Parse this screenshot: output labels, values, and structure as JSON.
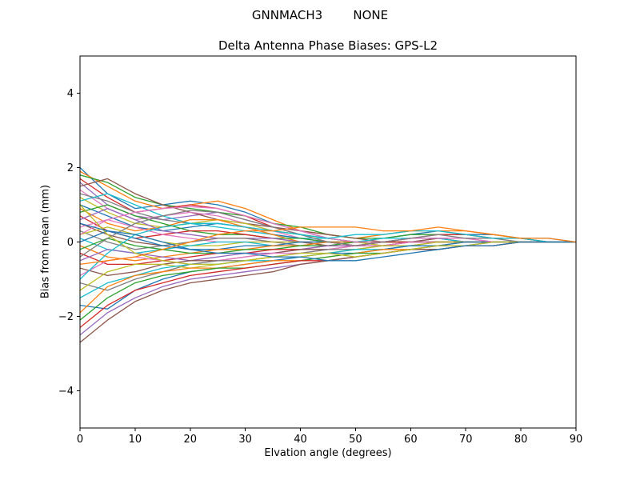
{
  "chart_data": {
    "type": "line",
    "suptitle": "GNNMACH3        NONE",
    "title": "Delta Antenna Phase Biases: GPS-L2",
    "xlabel": "Elvation angle (degrees)",
    "ylabel": "Bias from mean (mm)",
    "xlim": [
      0,
      90
    ],
    "ylim": [
      -5,
      5
    ],
    "xticks": [
      0,
      10,
      20,
      30,
      40,
      50,
      60,
      70,
      80,
      90
    ],
    "yticks": [
      -4,
      -2,
      0,
      2,
      4
    ],
    "grid": false,
    "legend": "none",
    "line_width": 1.3,
    "axis_color": "#000000",
    "color_cycle": [
      "#1f77b4",
      "#ff7f0e",
      "#2ca02c",
      "#d62728",
      "#9467bd",
      "#8c564b",
      "#e377c2",
      "#7f7f7f",
      "#bcbd22",
      "#17becf"
    ],
    "x": [
      0,
      5,
      10,
      15,
      20,
      25,
      30,
      35,
      40,
      45,
      50,
      55,
      60,
      65,
      70,
      75,
      80,
      85,
      90
    ],
    "series": [
      {
        "values": [
          2.0,
          1.3,
          0.9,
          1.0,
          1.1,
          1.0,
          0.8,
          0.5,
          0.3,
          0.1,
          0.0,
          0.1,
          0.2,
          0.3,
          0.2,
          0.2,
          0.1,
          0.1,
          0.0
        ]
      },
      {
        "values": [
          1.9,
          1.5,
          1.1,
          0.9,
          1.0,
          1.1,
          0.9,
          0.6,
          0.3,
          0.2,
          0.1,
          0.2,
          0.3,
          0.3,
          0.3,
          0.2,
          0.1,
          0.0,
          0.0
        ]
      },
      {
        "values": [
          1.8,
          1.6,
          1.2,
          1.0,
          0.9,
          0.8,
          0.7,
          0.5,
          0.4,
          0.2,
          0.1,
          0.1,
          0.2,
          0.2,
          0.2,
          0.1,
          0.1,
          0.0,
          0.0
        ]
      },
      {
        "values": [
          1.7,
          1.2,
          0.8,
          0.9,
          1.0,
          0.9,
          0.7,
          0.4,
          0.2,
          0.0,
          -0.1,
          0.0,
          0.1,
          0.2,
          0.2,
          0.1,
          0.1,
          0.0,
          0.0
        ]
      },
      {
        "values": [
          1.6,
          1.0,
          0.7,
          0.6,
          0.7,
          0.8,
          0.6,
          0.4,
          0.3,
          0.1,
          0.0,
          0.0,
          0.1,
          0.1,
          0.1,
          0.1,
          0.0,
          0.0,
          0.0
        ]
      },
      {
        "values": [
          1.5,
          1.7,
          1.3,
          1.0,
          0.8,
          0.6,
          0.5,
          0.4,
          0.3,
          0.2,
          0.1,
          0.0,
          0.1,
          0.1,
          0.1,
          0.0,
          0.0,
          0.0,
          0.0
        ]
      },
      {
        "values": [
          1.4,
          0.9,
          0.6,
          0.7,
          0.8,
          0.7,
          0.5,
          0.3,
          0.1,
          0.0,
          -0.1,
          -0.1,
          0.0,
          0.1,
          0.1,
          0.0,
          0.0,
          0.0,
          0.0
        ]
      },
      {
        "values": [
          1.3,
          1.1,
          0.8,
          0.6,
          0.5,
          0.5,
          0.4,
          0.3,
          0.2,
          0.1,
          0.0,
          0.0,
          0.0,
          0.1,
          0.0,
          0.0,
          0.0,
          0.0,
          0.0
        ]
      },
      {
        "values": [
          1.2,
          0.8,
          0.5,
          0.4,
          0.5,
          0.6,
          0.5,
          0.3,
          0.2,
          0.1,
          0.0,
          -0.1,
          0.0,
          0.0,
          0.0,
          0.0,
          0.0,
          0.0,
          0.0
        ]
      },
      {
        "values": [
          1.1,
          1.3,
          1.0,
          0.7,
          0.5,
          0.4,
          0.3,
          0.2,
          0.1,
          0.1,
          0.0,
          0.0,
          0.0,
          0.0,
          0.0,
          0.0,
          0.0,
          0.0,
          0.0
        ]
      },
      {
        "values": [
          1.0,
          0.7,
          0.4,
          0.3,
          0.4,
          0.5,
          0.4,
          0.2,
          0.1,
          0.0,
          0.0,
          0.0,
          0.1,
          0.1,
          0.0,
          0.0,
          0.0,
          0.0,
          0.0
        ]
      },
      {
        "values": [
          0.9,
          0.5,
          0.3,
          0.4,
          0.6,
          0.6,
          0.4,
          0.2,
          0.0,
          -0.1,
          -0.1,
          0.0,
          0.0,
          0.0,
          0.0,
          0.0,
          0.0,
          0.0,
          0.0
        ]
      },
      {
        "values": [
          0.8,
          1.0,
          0.7,
          0.5,
          0.3,
          0.2,
          0.2,
          0.1,
          0.1,
          0.0,
          0.0,
          0.0,
          0.0,
          0.0,
          0.0,
          0.0,
          0.0,
          0.0,
          0.0
        ]
      },
      {
        "values": [
          0.7,
          0.3,
          0.1,
          0.2,
          0.3,
          0.3,
          0.2,
          0.1,
          0.0,
          0.0,
          -0.1,
          -0.1,
          0.0,
          0.0,
          0.0,
          0.0,
          0.0,
          0.0,
          0.0
        ]
      },
      {
        "values": [
          0.6,
          0.9,
          0.6,
          0.3,
          0.2,
          0.1,
          0.1,
          0.1,
          0.0,
          0.0,
          0.0,
          0.0,
          0.0,
          0.0,
          0.0,
          0.0,
          0.0,
          0.0,
          0.0
        ]
      },
      {
        "values": [
          0.5,
          0.2,
          0.0,
          -0.1,
          0.0,
          0.1,
          0.1,
          0.0,
          0.0,
          -0.1,
          -0.1,
          0.0,
          0.0,
          0.1,
          0.0,
          0.0,
          0.0,
          0.0,
          0.0
        ]
      },
      {
        "values": [
          0.4,
          0.6,
          0.4,
          0.2,
          0.1,
          0.0,
          0.0,
          0.0,
          0.0,
          0.0,
          0.0,
          0.0,
          0.1,
          0.1,
          0.1,
          0.0,
          0.0,
          0.0,
          0.0
        ]
      },
      {
        "values": [
          0.3,
          0.0,
          -0.2,
          -0.1,
          0.0,
          0.1,
          0.1,
          0.0,
          -0.1,
          -0.1,
          0.0,
          0.0,
          0.0,
          0.0,
          0.0,
          0.0,
          0.0,
          0.0,
          0.0
        ]
      },
      {
        "values": [
          0.2,
          0.4,
          0.2,
          0.0,
          -0.1,
          -0.1,
          0.0,
          0.0,
          0.0,
          0.0,
          0.0,
          0.0,
          0.0,
          0.0,
          0.0,
          0.0,
          0.0,
          0.0,
          0.0
        ]
      },
      {
        "values": [
          0.1,
          -0.2,
          -0.3,
          -0.2,
          -0.1,
          0.0,
          0.0,
          -0.1,
          -0.1,
          0.0,
          0.0,
          0.1,
          0.1,
          0.1,
          0.0,
          0.0,
          0.0,
          0.0,
          0.0
        ]
      },
      {
        "values": [
          0.0,
          0.3,
          0.1,
          -0.1,
          -0.2,
          -0.2,
          -0.1,
          -0.1,
          0.0,
          0.0,
          0.0,
          0.0,
          0.0,
          0.0,
          0.0,
          0.0,
          0.0,
          0.0,
          0.0
        ]
      },
      {
        "values": [
          -0.1,
          -0.4,
          -0.5,
          -0.4,
          -0.3,
          -0.2,
          -0.2,
          -0.1,
          -0.1,
          0.0,
          0.0,
          0.0,
          0.0,
          0.0,
          0.0,
          0.0,
          0.0,
          0.0,
          0.0
        ]
      },
      {
        "values": [
          -0.2,
          0.1,
          -0.1,
          -0.2,
          -0.3,
          -0.3,
          -0.2,
          -0.2,
          -0.1,
          -0.1,
          0.0,
          0.0,
          0.0,
          0.0,
          0.0,
          0.0,
          0.0,
          0.0,
          0.0
        ]
      },
      {
        "values": [
          -0.3,
          -0.6,
          -0.6,
          -0.5,
          -0.4,
          -0.3,
          -0.3,
          -0.2,
          -0.2,
          -0.1,
          -0.1,
          0.0,
          0.0,
          0.0,
          0.0,
          0.0,
          0.0,
          0.0,
          0.0
        ]
      },
      {
        "values": [
          -0.5,
          -0.2,
          -0.3,
          -0.4,
          -0.5,
          -0.4,
          -0.3,
          -0.3,
          -0.2,
          -0.1,
          -0.1,
          -0.1,
          0.0,
          0.0,
          0.0,
          0.0,
          0.0,
          0.0,
          0.0
        ]
      },
      {
        "values": [
          -0.7,
          -0.9,
          -0.8,
          -0.6,
          -0.5,
          -0.5,
          -0.4,
          -0.3,
          -0.2,
          -0.2,
          -0.1,
          -0.1,
          -0.1,
          0.0,
          0.0,
          0.0,
          0.0,
          0.0,
          0.0
        ]
      },
      {
        "values": [
          -0.9,
          -0.5,
          -0.4,
          -0.5,
          -0.6,
          -0.5,
          -0.4,
          -0.3,
          -0.3,
          -0.2,
          -0.1,
          -0.1,
          0.0,
          0.0,
          0.0,
          0.0,
          0.0,
          0.0,
          0.0
        ]
      },
      {
        "values": [
          -1.1,
          -1.3,
          -1.0,
          -0.8,
          -0.6,
          -0.5,
          -0.5,
          -0.4,
          -0.3,
          -0.2,
          -0.2,
          -0.1,
          -0.1,
          -0.1,
          0.0,
          0.0,
          0.0,
          0.0,
          0.0
        ]
      },
      {
        "values": [
          -1.3,
          -0.8,
          -0.6,
          -0.6,
          -0.7,
          -0.6,
          -0.5,
          -0.4,
          -0.3,
          -0.3,
          -0.2,
          -0.1,
          -0.1,
          0.0,
          0.0,
          0.0,
          0.0,
          0.0,
          0.0
        ]
      },
      {
        "values": [
          -1.5,
          -1.1,
          -0.9,
          -0.7,
          -0.6,
          -0.6,
          -0.5,
          -0.5,
          -0.4,
          -0.3,
          -0.2,
          -0.2,
          -0.1,
          -0.1,
          -0.1,
          0.0,
          0.0,
          0.0,
          0.0
        ]
      },
      {
        "values": [
          -1.7,
          -1.8,
          -1.3,
          -1.0,
          -0.8,
          -0.7,
          -0.6,
          -0.5,
          -0.4,
          -0.3,
          -0.3,
          -0.2,
          -0.1,
          -0.1,
          0.0,
          0.0,
          0.0,
          0.0,
          0.0
        ]
      },
      {
        "values": [
          -1.9,
          -1.2,
          -0.9,
          -0.8,
          -0.7,
          -0.7,
          -0.6,
          -0.5,
          -0.5,
          -0.4,
          -0.3,
          -0.2,
          -0.2,
          -0.1,
          -0.1,
          -0.1,
          0.0,
          0.0,
          0.0
        ]
      },
      {
        "values": [
          -2.1,
          -1.5,
          -1.1,
          -0.9,
          -0.8,
          -0.7,
          -0.7,
          -0.6,
          -0.5,
          -0.4,
          -0.3,
          -0.3,
          -0.2,
          -0.1,
          -0.1,
          0.0,
          0.0,
          0.0,
          0.0
        ]
      },
      {
        "values": [
          -2.3,
          -1.7,
          -1.3,
          -1.1,
          -0.9,
          -0.8,
          -0.7,
          -0.6,
          -0.5,
          -0.5,
          -0.4,
          -0.3,
          -0.2,
          -0.2,
          -0.1,
          -0.1,
          0.0,
          0.0,
          0.0
        ]
      },
      {
        "values": [
          -2.5,
          -1.9,
          -1.5,
          -1.2,
          -1.0,
          -0.9,
          -0.8,
          -0.7,
          -0.6,
          -0.5,
          -0.4,
          -0.3,
          -0.2,
          -0.1,
          -0.1,
          0.0,
          0.0,
          0.0,
          0.0
        ]
      },
      {
        "values": [
          -2.7,
          -2.1,
          -1.6,
          -1.3,
          -1.1,
          -1.0,
          -0.9,
          -0.8,
          -0.6,
          -0.5,
          -0.4,
          -0.3,
          -0.2,
          -0.2,
          -0.1,
          -0.1,
          0.0,
          0.0,
          0.0
        ]
      },
      {
        "values": [
          0.2,
          0.6,
          0.8,
          0.9,
          0.95,
          0.9,
          0.7,
          0.5,
          0.3,
          0.1,
          0.0,
          0.0,
          0.1,
          0.1,
          0.1,
          0.0,
          0.0,
          0.0,
          0.0
        ]
      },
      {
        "values": [
          -0.4,
          0.1,
          0.5,
          0.7,
          0.85,
          0.8,
          0.6,
          0.4,
          0.2,
          0.0,
          -0.1,
          0.0,
          0.1,
          0.2,
          0.1,
          0.1,
          0.0,
          0.0,
          0.0
        ]
      },
      {
        "values": [
          1.0,
          0.2,
          -0.3,
          -0.5,
          -0.6,
          -0.6,
          -0.5,
          -0.4,
          -0.4,
          -0.3,
          -0.4,
          -0.3,
          -0.2,
          -0.1,
          -0.1,
          0.0,
          0.0,
          0.0,
          0.0
        ]
      },
      {
        "values": [
          -1.0,
          -0.3,
          0.2,
          0.4,
          0.5,
          0.5,
          0.4,
          0.3,
          0.2,
          0.1,
          0.2,
          0.2,
          0.3,
          0.3,
          0.2,
          0.1,
          0.1,
          0.0,
          0.0
        ]
      },
      {
        "values": [
          0.5,
          0.3,
          0.2,
          0.0,
          -0.2,
          -0.3,
          -0.3,
          -0.4,
          -0.4,
          -0.5,
          -0.5,
          -0.4,
          -0.3,
          -0.2,
          -0.1,
          -0.1,
          0.0,
          0.0,
          0.0
        ]
      },
      {
        "values": [
          -0.6,
          -0.5,
          -0.4,
          -0.2,
          0.0,
          0.2,
          0.3,
          0.3,
          0.4,
          0.4,
          0.4,
          0.3,
          0.3,
          0.4,
          0.3,
          0.2,
          0.1,
          0.1,
          0.0
        ]
      }
    ]
  }
}
